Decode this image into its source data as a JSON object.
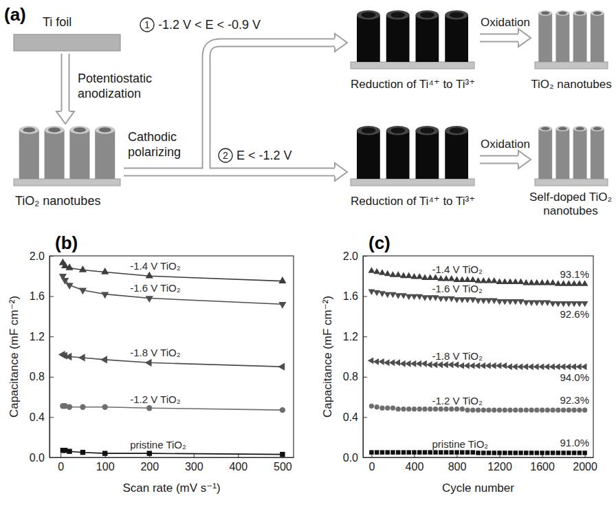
{
  "diagram": {
    "panel": "(a)",
    "ti_foil": "Ti foil",
    "anodization": "Potentiostatic anodization",
    "start": "TiO₂ nanotubes",
    "polarizing": "Cathodic polarizing",
    "branches": [
      {
        "step": "1",
        "condition": "-1.2 V < E < -0.9 V",
        "reduced": "Reduction of Ti⁴⁺ to Ti³⁺",
        "oxidation": "Oxidation",
        "product": "TiO₂ nanotubes"
      },
      {
        "step": "2",
        "condition": "E < -1.2 V",
        "reduced": "Reduction of Ti⁴⁺ to Ti³⁺",
        "oxidation": "Oxidation",
        "product": "Self-doped TiO₂ nanotubes"
      }
    ]
  },
  "chart_data": [
    {
      "type": "line",
      "panel": "(b)",
      "x_label": "Scan rate (mV s⁻¹)",
      "y_label": "Capacitance (mF cm⁻²)",
      "x": [
        5,
        10,
        20,
        50,
        100,
        200,
        500
      ],
      "xlim": [
        -25,
        525
      ],
      "xticks": [
        0,
        100,
        200,
        300,
        400,
        500
      ],
      "ylim": [
        0,
        2
      ],
      "yticks": [
        {
          "value": 0,
          "label": "0.0"
        },
        0.4,
        0.8,
        1.2,
        1.6,
        {
          "value": 2,
          "label": "2.0"
        }
      ],
      "series": [
        {
          "name": "-1.4 V TiO₂",
          "color": "#3d3d3d",
          "marker": "triangle-up",
          "values": [
            1.93,
            1.9,
            1.88,
            1.86,
            1.84,
            1.8,
            1.75
          ]
        },
        {
          "name": "-1.6 V TiO₂",
          "color": "#4d4d4d",
          "marker": "triangle-down",
          "values": [
            1.8,
            1.76,
            1.71,
            1.66,
            1.62,
            1.58,
            1.52
          ]
        },
        {
          "name": "-1.8 V TiO₂",
          "color": "#4d4d4d",
          "marker": "triangle-left",
          "values": [
            1.02,
            1.01,
            1.0,
            0.99,
            0.97,
            0.94,
            0.9
          ]
        },
        {
          "name": "-1.2 V TiO₂",
          "color": "#6e6e6e",
          "marker": "circle",
          "values": [
            0.51,
            0.51,
            0.5,
            0.5,
            0.5,
            0.49,
            0.47
          ]
        },
        {
          "name": "pristine TiO₂",
          "color": "#111111",
          "marker": "square",
          "values": [
            0.07,
            0.07,
            0.06,
            0.05,
            0.04,
            0.04,
            0.03
          ]
        }
      ]
    },
    {
      "type": "scatter",
      "panel": "(c)",
      "x_label": "Cycle number",
      "y_label": "Capacitance (mF cm⁻²)",
      "x": [
        0,
        50,
        100,
        150,
        200,
        250,
        300,
        350,
        400,
        450,
        500,
        550,
        600,
        650,
        700,
        750,
        800,
        850,
        900,
        950,
        1000,
        1050,
        1100,
        1150,
        1200,
        1250,
        1300,
        1350,
        1400,
        1450,
        1500,
        1550,
        1600,
        1650,
        1700,
        1750,
        1800,
        1850,
        1900,
        1950,
        2000
      ],
      "xlim": [
        -80,
        2080
      ],
      "xticks": [
        0,
        400,
        800,
        1200,
        1600,
        2000
      ],
      "ylim": [
        0,
        2
      ],
      "yticks": [
        {
          "value": 0,
          "label": "0.0"
        },
        0.4,
        0.8,
        1.2,
        1.6,
        {
          "value": 2,
          "label": "2.0"
        }
      ],
      "series": [
        {
          "name": "-1.4 V TiO₂",
          "color": "#3d3d3d",
          "marker": "triangle-up",
          "annotation": "93.1%",
          "values": [
            1.85,
            1.84,
            1.83,
            1.82,
            1.81,
            1.81,
            1.8,
            1.8,
            1.79,
            1.79,
            1.78,
            1.78,
            1.78,
            1.77,
            1.77,
            1.77,
            1.76,
            1.76,
            1.76,
            1.76,
            1.75,
            1.75,
            1.75,
            1.75,
            1.74,
            1.74,
            1.74,
            1.74,
            1.74,
            1.73,
            1.73,
            1.73,
            1.73,
            1.73,
            1.73,
            1.72,
            1.72,
            1.72,
            1.72,
            1.72,
            1.72
          ]
        },
        {
          "name": "-1.6 V TiO₂",
          "color": "#4d4d4d",
          "marker": "triangle-down",
          "annotation": "92.6%",
          "values": [
            1.65,
            1.64,
            1.63,
            1.62,
            1.62,
            1.61,
            1.61,
            1.6,
            1.6,
            1.6,
            1.59,
            1.59,
            1.59,
            1.58,
            1.58,
            1.58,
            1.57,
            1.57,
            1.57,
            1.57,
            1.56,
            1.56,
            1.56,
            1.56,
            1.55,
            1.55,
            1.55,
            1.55,
            1.55,
            1.54,
            1.54,
            1.54,
            1.54,
            1.54,
            1.53,
            1.53,
            1.53,
            1.53,
            1.53,
            1.53,
            1.53
          ]
        },
        {
          "name": "-1.8 V TiO₂",
          "color": "#4d4d4d",
          "marker": "triangle-left",
          "annotation": "94.0%",
          "values": [
            0.96,
            0.95,
            0.95,
            0.94,
            0.94,
            0.94,
            0.93,
            0.93,
            0.93,
            0.93,
            0.93,
            0.92,
            0.92,
            0.92,
            0.92,
            0.92,
            0.92,
            0.91,
            0.91,
            0.91,
            0.91,
            0.91,
            0.91,
            0.91,
            0.91,
            0.91,
            0.9,
            0.9,
            0.9,
            0.9,
            0.9,
            0.9,
            0.9,
            0.9,
            0.9,
            0.9,
            0.9,
            0.9,
            0.9,
            0.9,
            0.9
          ]
        },
        {
          "name": "-1.2 V TiO₂",
          "color": "#6e6e6e",
          "marker": "circle",
          "annotation": "92.3%",
          "values": [
            0.51,
            0.5,
            0.49,
            0.49,
            0.49,
            0.48,
            0.48,
            0.48,
            0.48,
            0.48,
            0.48,
            0.48,
            0.48,
            0.48,
            0.48,
            0.48,
            0.48,
            0.48,
            0.47,
            0.47,
            0.47,
            0.47,
            0.47,
            0.47,
            0.47,
            0.47,
            0.47,
            0.47,
            0.47,
            0.47,
            0.47,
            0.47,
            0.47,
            0.47,
            0.47,
            0.47,
            0.47,
            0.47,
            0.47,
            0.47,
            0.47
          ]
        },
        {
          "name": "pristine TiO₂",
          "color": "#111111",
          "marker": "square",
          "annotation": "91.0%",
          "values": [
            0.05,
            0.05,
            0.05,
            0.05,
            0.05,
            0.05,
            0.05,
            0.05,
            0.05,
            0.05,
            0.05,
            0.05,
            0.05,
            0.05,
            0.05,
            0.05,
            0.05,
            0.05,
            0.05,
            0.05,
            0.045,
            0.045,
            0.045,
            0.045,
            0.045,
            0.045,
            0.045,
            0.045,
            0.045,
            0.045,
            0.045,
            0.045,
            0.045,
            0.045,
            0.045,
            0.045,
            0.045,
            0.045,
            0.045,
            0.045,
            0.045
          ]
        }
      ]
    }
  ]
}
